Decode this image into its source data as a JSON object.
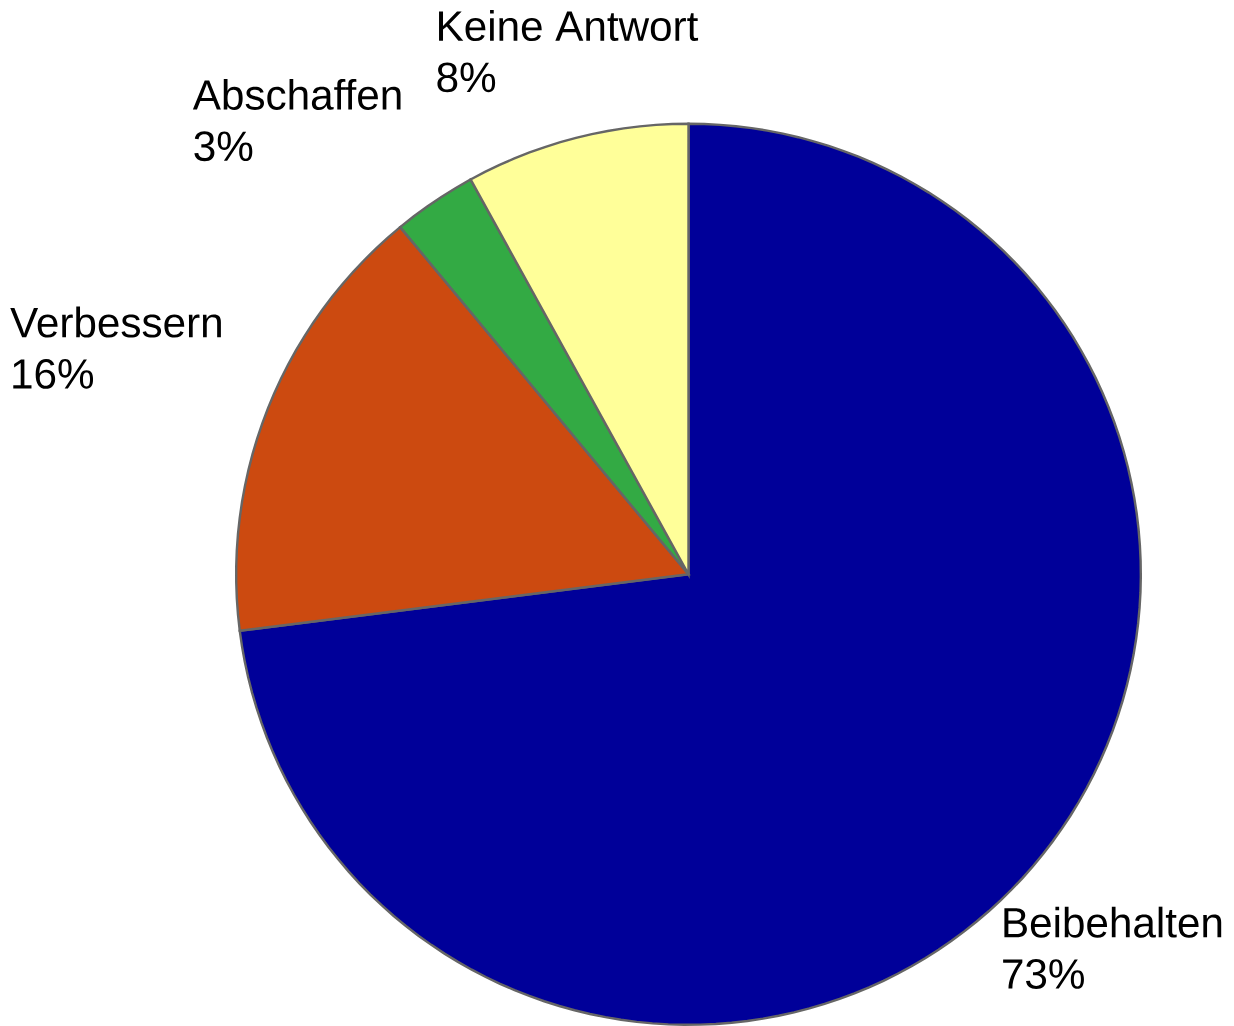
{
  "chart_data": {
    "type": "pie",
    "categories": [
      "Beibehalten",
      "Verbessern",
      "Abschaffen",
      "Keine Antwort"
    ],
    "values": [
      73,
      16,
      3,
      8
    ],
    "value_labels": [
      "73%",
      "16%",
      "3%",
      "8%"
    ],
    "colors": [
      "#000099",
      "#cc4a10",
      "#33aa44",
      "#ffff99"
    ]
  }
}
